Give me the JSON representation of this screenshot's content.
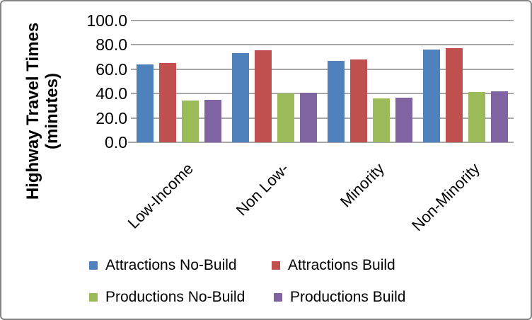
{
  "figure": {
    "background": "#ffffff",
    "border_color": "#848484"
  },
  "chart_data": {
    "type": "bar",
    "title": "",
    "ylabel_line1": "Highway Travel Times",
    "ylabel_line2": "(minutes)",
    "xlabel": "",
    "categories": [
      "Low-Income",
      "Non Low-",
      "Minority",
      "Non-Minority"
    ],
    "series": [
      {
        "name": "Attractions No-Build",
        "color": "#4f81bd",
        "values": [
          64.0,
          73.5,
          67.0,
          76.0
        ]
      },
      {
        "name": "Attractions Build",
        "color": "#c0504d",
        "values": [
          65.0,
          75.5,
          68.0,
          77.5
        ]
      },
      {
        "name": "Productions No-Build",
        "color": "#9bbb59",
        "values": [
          34.5,
          40.0,
          36.0,
          41.0
        ]
      },
      {
        "name": "Productions Build",
        "color": "#8064a2",
        "values": [
          35.0,
          40.5,
          36.5,
          42.0
        ]
      }
    ],
    "ylim": [
      0,
      100
    ],
    "yticks": [
      0,
      20,
      40,
      60,
      80,
      100
    ],
    "ytick_labels": [
      "0.0",
      "20.0",
      "40.0",
      "60.0",
      "80.0",
      "100.0"
    ],
    "grid": true,
    "gridline_color": "#a6a6a6",
    "legend_position": "bottom",
    "legend_rows": 2
  }
}
